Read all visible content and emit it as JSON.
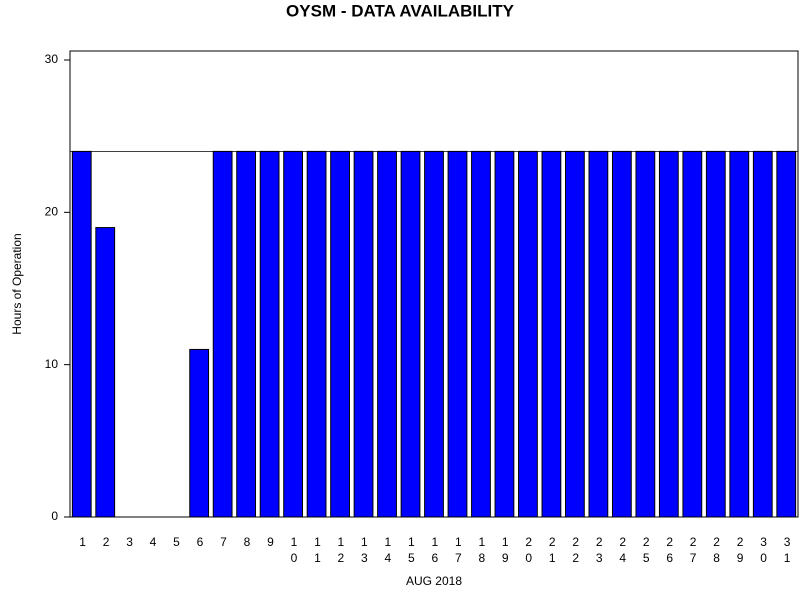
{
  "chart_data": {
    "type": "bar",
    "title": "OYSM - DATA AVAILABILITY",
    "x_label": "AUG 2018",
    "y_label": "Hours of Operation",
    "categories": [
      "1",
      "2",
      "3",
      "4",
      "5",
      "6",
      "7",
      "8",
      "9",
      "10",
      "11",
      "12",
      "13",
      "14",
      "15",
      "16",
      "17",
      "18",
      "19",
      "20",
      "21",
      "22",
      "23",
      "24",
      "25",
      "26",
      "27",
      "28",
      "29",
      "30",
      "31"
    ],
    "values": [
      24,
      19,
      0,
      0,
      0,
      11,
      24,
      24,
      24,
      24,
      24,
      24,
      24,
      24,
      24,
      24,
      24,
      24,
      24,
      24,
      24,
      24,
      24,
      24,
      24,
      24,
      24,
      24,
      24,
      24,
      24
    ],
    "color": "#0000ff",
    "reference_line": 24,
    "ylim": [
      0,
      30
    ],
    "yticks": [
      0,
      10,
      20,
      30
    ],
    "grid": false
  }
}
